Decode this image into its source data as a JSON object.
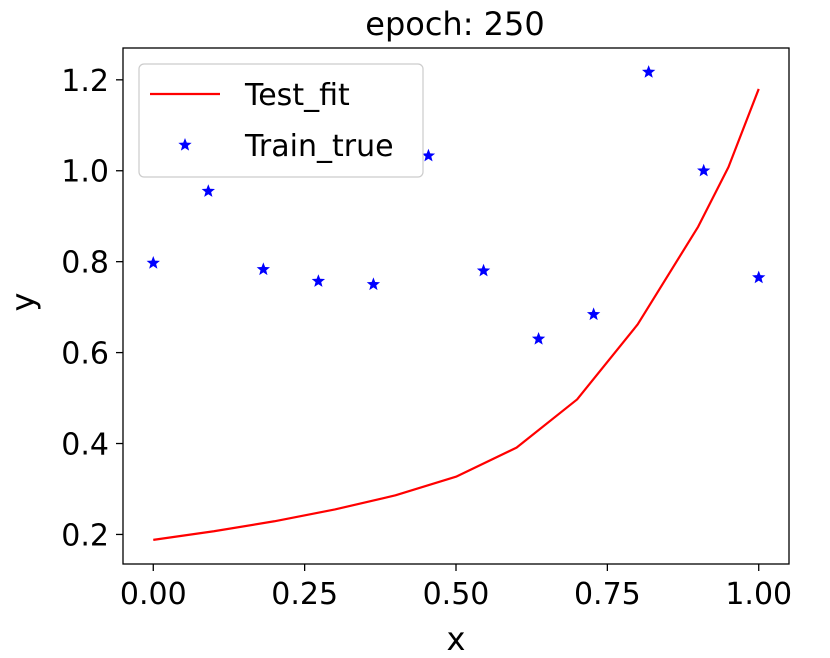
{
  "chart_data": {
    "type": "line",
    "title": "epoch: 250",
    "xlabel": "x",
    "ylabel": "y",
    "xlim": [
      -0.05,
      1.05
    ],
    "ylim": [
      0.135,
      1.27
    ],
    "xticks": [
      "0.00",
      "0.25",
      "0.50",
      "0.75",
      "1.00"
    ],
    "xtick_values": [
      0.0,
      0.25,
      0.5,
      0.75,
      1.0
    ],
    "yticks": [
      "0.2",
      "0.4",
      "0.6",
      "0.8",
      "1.0",
      "1.2"
    ],
    "ytick_values": [
      0.2,
      0.4,
      0.6,
      0.8,
      1.0,
      1.2
    ],
    "grid": false,
    "legend_position": "upper-left",
    "series": [
      {
        "name": "Test_fit",
        "kind": "line",
        "color": "#ff0000",
        "x": [
          0.0,
          0.1,
          0.2,
          0.3,
          0.4,
          0.5,
          0.6,
          0.7,
          0.8,
          0.9,
          0.95,
          1.0
        ],
        "y": [
          0.188,
          0.207,
          0.229,
          0.255,
          0.286,
          0.327,
          0.391,
          0.497,
          0.662,
          0.877,
          1.008,
          1.18
        ]
      },
      {
        "name": "Train_true",
        "kind": "scatter",
        "marker": "star",
        "color": "#0000ff",
        "x": [
          0.0,
          0.0909,
          0.1818,
          0.2727,
          0.3636,
          0.4545,
          0.5455,
          0.6364,
          0.7273,
          0.8182,
          0.9091,
          1.0
        ],
        "y": [
          0.797,
          0.955,
          0.783,
          0.757,
          0.75,
          1.033,
          0.78,
          0.63,
          0.684,
          1.217,
          1.0,
          0.765
        ]
      }
    ]
  }
}
